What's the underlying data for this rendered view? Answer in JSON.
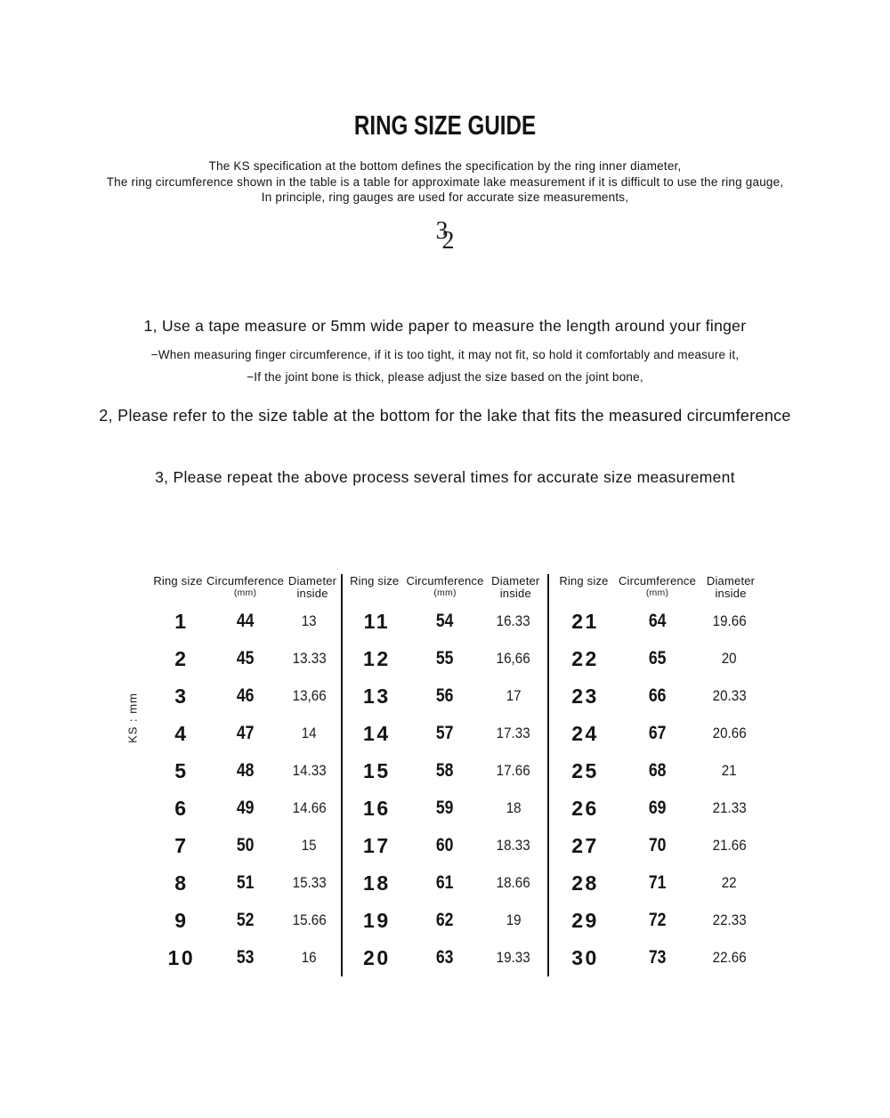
{
  "page": {
    "title": "RING SIZE GUIDE",
    "subtitle_lines": [
      "The KS specification at the bottom defines the specification by the ring inner diameter,",
      "The ring circumference shown in the table is a table for approximate lake measurement if it is difficult to use the ring gauge,",
      "In principle, ring gauges are used for accurate size measurements,"
    ],
    "ornament": {
      "top_digit": "3",
      "bottom_digit": "2"
    },
    "steps": [
      {
        "label": "1, Use a tape measure or 5mm wide paper to measure the length around your finger",
        "notes": [
          "−When measuring finger circumference, if it is too tight, it may not fit, so hold it comfortably and measure it,",
          "−If the joint bone is thick, please adjust the size based on the joint bone,"
        ]
      },
      {
        "label": "2, Please refer to the size table at the bottom for the lake that fits the measured circumference",
        "notes": []
      },
      {
        "label": "3, Please repeat the above process several times for accurate size measurement",
        "notes": []
      }
    ]
  },
  "table": {
    "unit_label": "KS : mm",
    "headers": {
      "ring_size": "Ring size",
      "circumference": "Circumference",
      "circumference_unit": "(mm)",
      "diameter_line1": "Diameter",
      "diameter_line2": "inside"
    },
    "groups": [
      {
        "rows": [
          {
            "size": "1",
            "circumference": "44",
            "diameter": "13"
          },
          {
            "size": "2",
            "circumference": "45",
            "diameter": "13.33"
          },
          {
            "size": "3",
            "circumference": "46",
            "diameter": "13,66"
          },
          {
            "size": "4",
            "circumference": "47",
            "diameter": "14"
          },
          {
            "size": "5",
            "circumference": "48",
            "diameter": "14.33"
          },
          {
            "size": "6",
            "circumference": "49",
            "diameter": "14.66"
          },
          {
            "size": "7",
            "circumference": "50",
            "diameter": "15"
          },
          {
            "size": "8",
            "circumference": "51",
            "diameter": "15.33"
          },
          {
            "size": "9",
            "circumference": "52",
            "diameter": "15.66"
          },
          {
            "size": "10",
            "circumference": "53",
            "diameter": "16"
          }
        ]
      },
      {
        "rows": [
          {
            "size": "11",
            "circumference": "54",
            "diameter": "16.33"
          },
          {
            "size": "12",
            "circumference": "55",
            "diameter": "16,66"
          },
          {
            "size": "13",
            "circumference": "56",
            "diameter": "17"
          },
          {
            "size": "14",
            "circumference": "57",
            "diameter": "17.33"
          },
          {
            "size": "15",
            "circumference": "58",
            "diameter": "17.66"
          },
          {
            "size": "16",
            "circumference": "59",
            "diameter": "18"
          },
          {
            "size": "17",
            "circumference": "60",
            "diameter": "18.33"
          },
          {
            "size": "18",
            "circumference": "61",
            "diameter": "18.66"
          },
          {
            "size": "19",
            "circumference": "62",
            "diameter": "19"
          },
          {
            "size": "20",
            "circumference": "63",
            "diameter": "19.33"
          }
        ]
      },
      {
        "rows": [
          {
            "size": "21",
            "circumference": "64",
            "diameter": "19.66"
          },
          {
            "size": "22",
            "circumference": "65",
            "diameter": "20"
          },
          {
            "size": "23",
            "circumference": "66",
            "diameter": "20.33"
          },
          {
            "size": "24",
            "circumference": "67",
            "diameter": "20.66"
          },
          {
            "size": "25",
            "circumference": "68",
            "diameter": "21"
          },
          {
            "size": "26",
            "circumference": "69",
            "diameter": "21.33"
          },
          {
            "size": "27",
            "circumference": "70",
            "diameter": "21.66"
          },
          {
            "size": "28",
            "circumference": "71",
            "diameter": "22"
          },
          {
            "size": "29",
            "circumference": "72",
            "diameter": "22.33"
          },
          {
            "size": "30",
            "circumference": "73",
            "diameter": "22.66"
          }
        ]
      }
    ]
  },
  "colors": {
    "text": "#141414",
    "divider": "#151515",
    "background": "#ffffff"
  }
}
